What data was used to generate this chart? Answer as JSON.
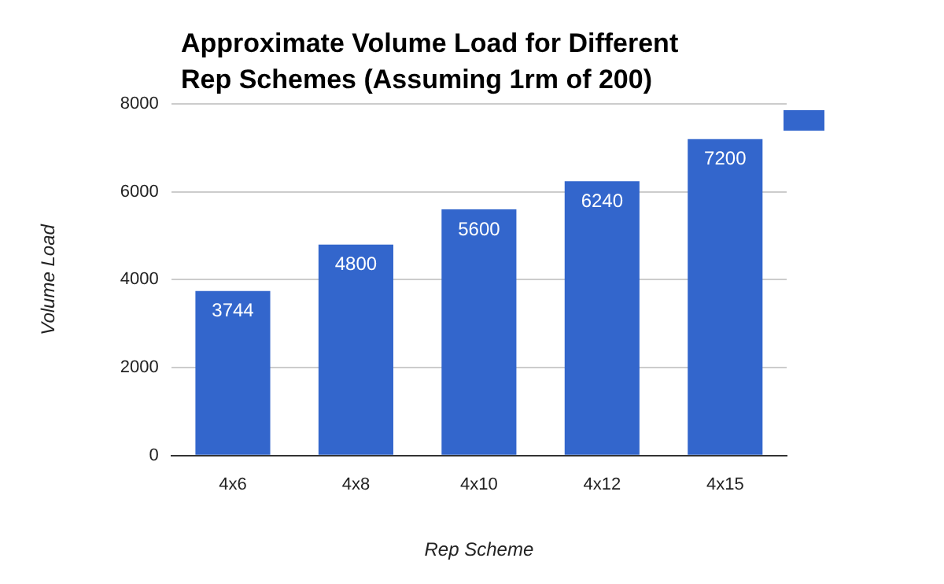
{
  "chart_data": {
    "type": "bar",
    "title": "Approximate Volume Load for Different Rep Schemes (Assuming 1rm of 200)",
    "xlabel": "Rep Scheme",
    "ylabel": "Volume Load",
    "categories": [
      "4x6",
      "4x8",
      "4x10",
      "4x12",
      "4x15"
    ],
    "series": [
      {
        "color": "#3366cc",
        "values": [
          3744,
          4800,
          5600,
          6240,
          7200
        ]
      }
    ],
    "ylim": [
      0,
      8000
    ],
    "yticks": [
      0,
      2000,
      4000,
      6000,
      8000
    ],
    "grid": "y",
    "data_labels": true
  }
}
